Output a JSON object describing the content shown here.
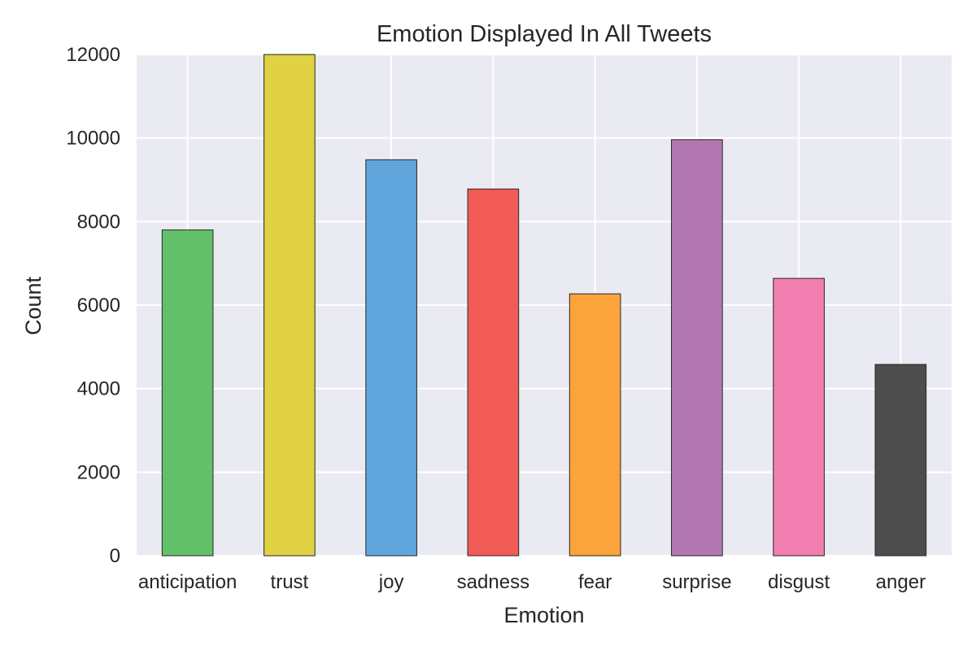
{
  "chart_data": {
    "type": "bar",
    "title": "Emotion Displayed In All Tweets",
    "xlabel": "Emotion",
    "ylabel": "Count",
    "categories": [
      "anticipation",
      "trust",
      "joy",
      "sadness",
      "fear",
      "surprise",
      "disgust",
      "anger"
    ],
    "values": [
      7800,
      12000,
      9480,
      8780,
      6270,
      9960,
      6640,
      4580
    ],
    "bar_colors": [
      "#62c06a",
      "#e0d242",
      "#60a6dd",
      "#f15b55",
      "#fba43c",
      "#b277b1",
      "#f27fb0",
      "#4d4d4d"
    ],
    "ylim": [
      0,
      12000
    ],
    "yticks": [
      "0",
      "2000",
      "4000",
      "6000",
      "8000",
      "10000",
      "12000"
    ],
    "grid": true,
    "style": {
      "plot_background": "#eaeaf2",
      "grid_color": "#ffffff",
      "bar_edge_color": "#262626"
    }
  }
}
